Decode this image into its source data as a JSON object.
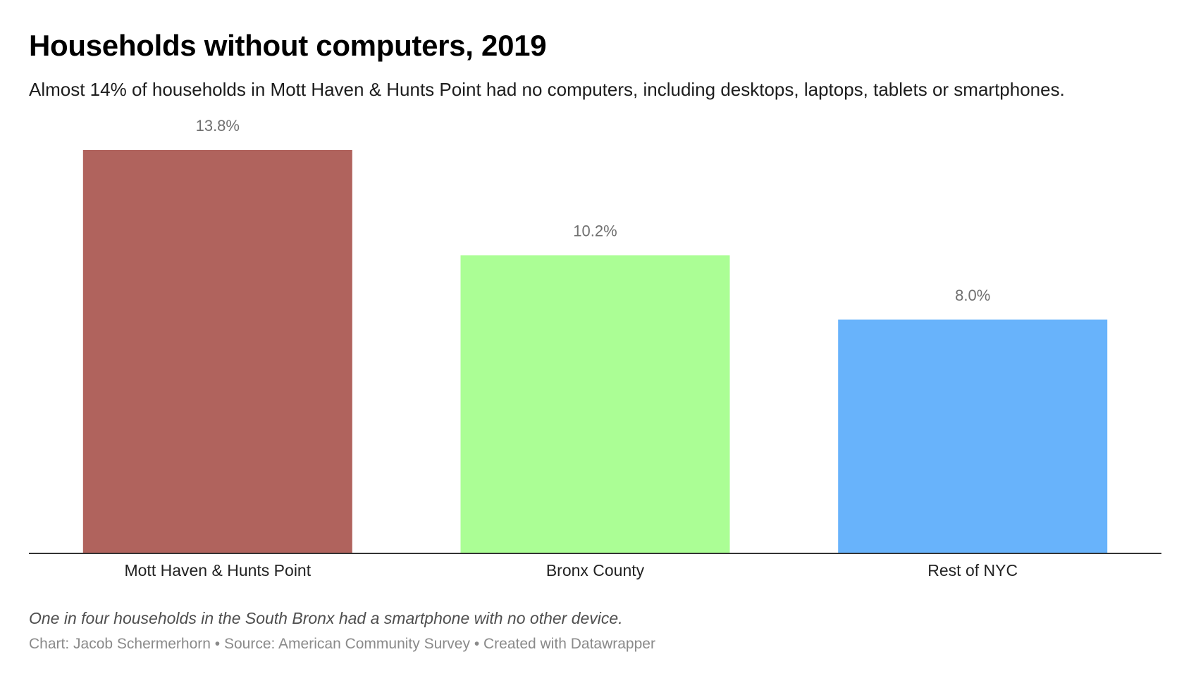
{
  "header": {
    "title": "Households without computers, 2019",
    "subtitle": "Almost 14% of households in Mott Haven & Hunts Point had no computers, including desktops, laptops, tablets or smartphones."
  },
  "chart_data": {
    "type": "bar",
    "categories": [
      "Mott Haven & Hunts Point",
      "Bronx County",
      "Rest of NYC"
    ],
    "values": [
      13.8,
      10.2,
      8.0
    ],
    "value_labels": [
      "13.8%",
      "10.2%",
      "8.0%"
    ],
    "colors": [
      "#b0635d",
      "#abfe95",
      "#68b3fb"
    ],
    "title": "Households without computers, 2019",
    "xlabel": "",
    "ylabel": "",
    "ylim": [
      0,
      13.8
    ],
    "grid": false,
    "legend": "none"
  },
  "footer": {
    "note": "One in four households in the South Bronx had a smartphone with no other device.",
    "credit_label": "Chart: Jacob Schermerhorn",
    "source_label": "Source: American Community Survey",
    "tool_label": "Created with Datawrapper",
    "separator": "•"
  }
}
